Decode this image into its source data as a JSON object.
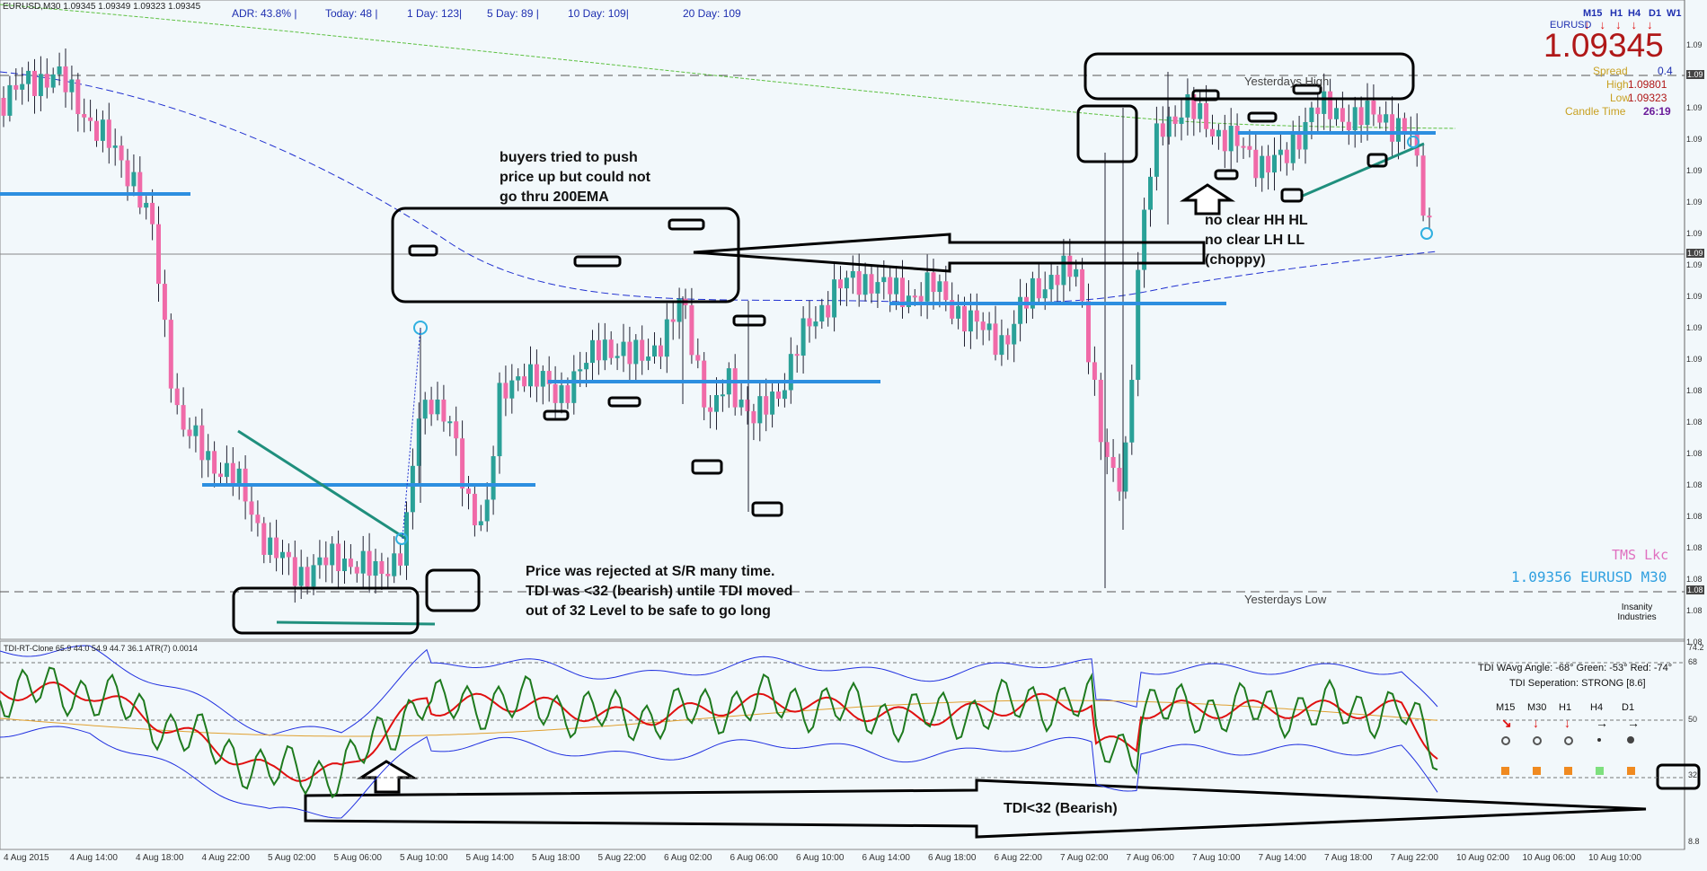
{
  "chart_header": {
    "symbol_line": "EURUSD,M30  1.09345 1.09349 1.09323 1.09345",
    "adr": "ADR:  43.8%   |",
    "today": "Today: 48   |",
    "day1": "1 Day:  123|",
    "day5": "5 Day:  89   |",
    "day10": "10 Day:  109|",
    "day20": "20 Day:  109"
  },
  "price_panel": {
    "tf_labels": [
      "M15",
      "H1",
      "H4",
      "D1",
      "W1"
    ],
    "symbol": "EURUSD",
    "price": "1.09345",
    "spread_label": "Spread",
    "spread_value": "0.4",
    "high_label": "High",
    "high_value": "1.09801",
    "low_label": "Low",
    "low_value": "1.09323",
    "candle_label": "Candle Time",
    "candle_value": "26:19"
  },
  "levels": {
    "yesterdays_high": "Yesterdays High",
    "yesterdays_low": "Yesterdays Low"
  },
  "annotations": {
    "buyers": [
      "buyers tried to push",
      "price up but could not",
      "go thru 200EMA"
    ],
    "choppy": [
      "no clear HH HL",
      "no clear LH LL",
      "(choppy)"
    ],
    "rejected": [
      "Price was rejected at S/R many time.",
      "TDI was <32 (bearish) untile TDI moved",
      "out of 32 Level to be safe to go long"
    ],
    "tdi_bearish": "TDI<32 (Bearish)"
  },
  "watermark": {
    "tms": "TMS Lkc",
    "price_line": "1.09356 EURUSD M30",
    "logo_text": "Insanity Industries"
  },
  "price_scale": [
    "1.09",
    "1.09",
    "1.09",
    "1.09",
    "1.09",
    "1.09",
    "1.09",
    "1.09",
    "1.09",
    "1.09",
    "1.09",
    "1.08",
    "1.08",
    "1.08",
    "1.08",
    "1.08",
    "1.08",
    "1.08",
    "1.08",
    "1.08"
  ],
  "price_scale_tags": [
    "1.09",
    "1.09",
    "1.08"
  ],
  "tdi": {
    "header": "TDI-RT-Clone 65.9 44.0 54.9 44.7 36.1  ATR(7) 0.0014",
    "angle": "TDI WAvg Angle: -68°  Green: -53°  Red: -74°",
    "separation": "TDI Seperation: STRONG [8.6]",
    "tfs": [
      "M15",
      "M30",
      "H1",
      "H4",
      "D1"
    ],
    "arrows": [
      "↘",
      "↓",
      "↓",
      "→",
      "→"
    ],
    "scale": [
      "74.2",
      "68",
      "50",
      "32",
      "8.8"
    ]
  },
  "time_axis": [
    "4 Aug 2015",
    "4 Aug 14:00",
    "4 Aug 18:00",
    "4 Aug 22:00",
    "5 Aug 02:00",
    "5 Aug 06:00",
    "5 Aug 10:00",
    "5 Aug 14:00",
    "5 Aug 18:00",
    "5 Aug 22:00",
    "6 Aug 02:00",
    "6 Aug 06:00",
    "6 Aug 10:00",
    "6 Aug 14:00",
    "6 Aug 18:00",
    "6 Aug 22:00",
    "7 Aug 02:00",
    "7 Aug 06:00",
    "7 Aug 10:00",
    "7 Aug 14:00",
    "7 Aug 18:00",
    "7 Aug 22:00",
    "10 Aug 02:00",
    "10 Aug 06:00",
    "10 Aug 10:00"
  ],
  "colors": {
    "bull": "#2aa198",
    "bear": "#f06aa8",
    "support": "#2d8fe0",
    "trend": "#1f8f7d",
    "tdi_red": "#e01010",
    "tdi_green": "#1e7a1e",
    "tdi_band": "#2030e0",
    "tdi_mid": "#e0a030"
  }
}
